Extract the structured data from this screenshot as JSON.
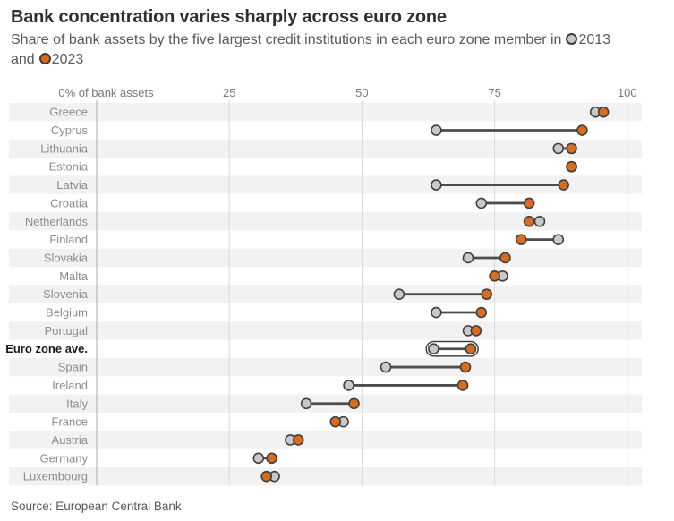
{
  "header": {
    "title": "Bank concentration varies sharply across euro zone",
    "subtitle_line1": "Share of bank assets by the five largest credit institutions in each euro zone member in",
    "legend_2013_label": "2013",
    "subtitle_line2_prefix": "and",
    "legend_2023_label": "2023"
  },
  "source": "Source: European Central Bank",
  "colors": {
    "dot_2013": "#c9c9c9",
    "dot_2023": "#d96c1e",
    "dot_stroke": "#3f3f3f",
    "connector": "#4d4d4d",
    "band": "#f2f2f2",
    "gridline": "#d9d9d9",
    "zero_line": "#ababab",
    "tick_label": "#7a7a7a",
    "row_label": "#8c8c8c",
    "row_label_highlight": "#1a1a1a"
  },
  "chart_data": {
    "type": "dumbbell",
    "title": "Bank concentration varies sharply across euro zone",
    "xlabel_first_tick": "0% of bank assets",
    "ticks": [
      0,
      25,
      50,
      75,
      100
    ],
    "xlim": [
      0,
      100
    ],
    "grid": true,
    "series_names": [
      "2013",
      "2023"
    ],
    "rows": [
      {
        "label": "Greece",
        "v2013": 94,
        "v2023": 95.5
      },
      {
        "label": "Cyprus",
        "v2013": 64,
        "v2023": 91.5
      },
      {
        "label": "Lithuania",
        "v2013": 87,
        "v2023": 89.5
      },
      {
        "label": "Estonia",
        "v2013": 89.5,
        "v2023": 89.5
      },
      {
        "label": "Latvia",
        "v2013": 64,
        "v2023": 88
      },
      {
        "label": "Croatia",
        "v2013": 72.5,
        "v2023": 81.5
      },
      {
        "label": "Netherlands",
        "v2013": 83.5,
        "v2023": 81.5
      },
      {
        "label": "Finland",
        "v2013": 87,
        "v2023": 80
      },
      {
        "label": "Slovakia",
        "v2013": 70,
        "v2023": 77
      },
      {
        "label": "Malta",
        "v2013": 76.5,
        "v2023": 75
      },
      {
        "label": "Slovenia",
        "v2013": 57,
        "v2023": 73.5
      },
      {
        "label": "Belgium",
        "v2013": 64,
        "v2023": 72.5
      },
      {
        "label": "Portugal",
        "v2013": 70,
        "v2023": 71.5
      },
      {
        "label": "Euro zone ave.",
        "v2013": 63.5,
        "v2023": 70.5,
        "highlight": true
      },
      {
        "label": "Spain",
        "v2013": 54.5,
        "v2023": 69.5
      },
      {
        "label": "Ireland",
        "v2013": 47.5,
        "v2023": 69
      },
      {
        "label": "Italy",
        "v2013": 39.5,
        "v2023": 48.5
      },
      {
        "label": "France",
        "v2013": 46.5,
        "v2023": 45
      },
      {
        "label": "Austria",
        "v2013": 36.5,
        "v2023": 38
      },
      {
        "label": "Germany",
        "v2013": 30.5,
        "v2023": 33
      },
      {
        "label": "Luxembourg",
        "v2013": 33.5,
        "v2023": 32
      }
    ]
  }
}
